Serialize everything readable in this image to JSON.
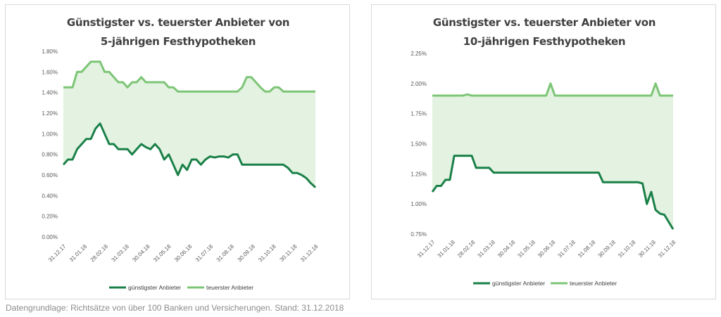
{
  "colors": {
    "cheapest": "#1a8048",
    "most_expensive": "#7cc576",
    "band": "#e3f2e1"
  },
  "footnote": "Datengrundlage: Richtsätze von über 100 Banken und Versicherungen. Stand: 31.12.2018",
  "chart_data": [
    {
      "type": "line",
      "title_line1": "Günstigster vs. teuerster Anbieter von",
      "title_line2": "5-jährigen Festhypotheken",
      "xlabel": "",
      "ylabel": "",
      "ylim": [
        0,
        1.8
      ],
      "yticks": [
        "0.00%",
        "0.20%",
        "0.40%",
        "0.60%",
        "0.80%",
        "1.00%",
        "1.20%",
        "1.40%",
        "1.60%",
        "1.80%"
      ],
      "x_ticks": [
        "31.12.17",
        "31.01.18",
        "28.02.18",
        "31.03.18",
        "30.04.18",
        "31.05.18",
        "30.06.18",
        "31.07.18",
        "31.08.18",
        "30.09.18",
        "31.10.18",
        "30.11.18",
        "31.12.18"
      ],
      "grid": false,
      "legend": "bottom",
      "series": [
        {
          "name": "günstigster Anbieter",
          "values": [
            0.7,
            0.75,
            0.75,
            0.85,
            0.9,
            0.95,
            0.95,
            1.05,
            1.1,
            1.0,
            0.9,
            0.9,
            0.85,
            0.85,
            0.85,
            0.8,
            0.85,
            0.9,
            0.87,
            0.85,
            0.9,
            0.85,
            0.75,
            0.8,
            0.7,
            0.6,
            0.7,
            0.65,
            0.75,
            0.75,
            0.7,
            0.75,
            0.78,
            0.77,
            0.78,
            0.78,
            0.77,
            0.8,
            0.8,
            0.7,
            0.7,
            0.7,
            0.7,
            0.7,
            0.7,
            0.7,
            0.7,
            0.7,
            0.7,
            0.67,
            0.62,
            0.62,
            0.6,
            0.57,
            0.52,
            0.48
          ]
        },
        {
          "name": "teuerster Anbieter",
          "values": [
            1.45,
            1.45,
            1.45,
            1.6,
            1.6,
            1.65,
            1.7,
            1.7,
            1.7,
            1.6,
            1.6,
            1.55,
            1.5,
            1.5,
            1.45,
            1.5,
            1.5,
            1.55,
            1.5,
            1.5,
            1.5,
            1.5,
            1.5,
            1.45,
            1.45,
            1.41,
            1.41,
            1.41,
            1.41,
            1.41,
            1.41,
            1.41,
            1.41,
            1.41,
            1.41,
            1.41,
            1.41,
            1.41,
            1.41,
            1.45,
            1.55,
            1.55,
            1.5,
            1.45,
            1.41,
            1.41,
            1.45,
            1.45,
            1.41,
            1.41,
            1.41,
            1.41,
            1.41,
            1.41,
            1.41,
            1.41
          ]
        }
      ]
    },
    {
      "type": "line",
      "title_line1": "Günstigster vs. teuerster Anbieter von",
      "title_line2": "10-jährigen Festhypotheken",
      "xlabel": "",
      "ylabel": "",
      "ylim": [
        0.75,
        2.25
      ],
      "yticks": [
        "0.75%",
        "1.00%",
        "1.25%",
        "1.50%",
        "1.75%",
        "2.00%",
        "2.25%"
      ],
      "x_ticks": [
        "31.12.17",
        "31.01.18",
        "28.02.18",
        "31.03.18",
        "30.04.18",
        "31.05.18",
        "30.06.18",
        "31.07.18",
        "31.08.18",
        "30.09.18",
        "31.10.18",
        "30.11.18",
        "31.12.18"
      ],
      "grid": false,
      "legend": "bottom",
      "series": [
        {
          "name": "günstigster Anbieter",
          "values": [
            1.1,
            1.15,
            1.15,
            1.2,
            1.2,
            1.4,
            1.4,
            1.4,
            1.4,
            1.4,
            1.3,
            1.3,
            1.3,
            1.3,
            1.26,
            1.26,
            1.26,
            1.26,
            1.26,
            1.26,
            1.26,
            1.26,
            1.26,
            1.26,
            1.26,
            1.26,
            1.26,
            1.26,
            1.26,
            1.26,
            1.26,
            1.26,
            1.26,
            1.26,
            1.26,
            1.26,
            1.26,
            1.26,
            1.26,
            1.18,
            1.18,
            1.18,
            1.18,
            1.18,
            1.18,
            1.18,
            1.18,
            1.18,
            1.17,
            1.0,
            1.1,
            0.95,
            0.92,
            0.91,
            0.85,
            0.79
          ]
        },
        {
          "name": "teuerster Anbieter",
          "values": [
            1.9,
            1.9,
            1.9,
            1.9,
            1.9,
            1.9,
            1.9,
            1.9,
            1.91,
            1.9,
            1.9,
            1.9,
            1.9,
            1.9,
            1.9,
            1.9,
            1.9,
            1.9,
            1.9,
            1.9,
            1.9,
            1.9,
            1.9,
            1.9,
            1.9,
            1.9,
            1.9,
            2.0,
            1.9,
            1.9,
            1.9,
            1.9,
            1.9,
            1.9,
            1.9,
            1.9,
            1.9,
            1.9,
            1.9,
            1.9,
            1.9,
            1.9,
            1.9,
            1.9,
            1.9,
            1.9,
            1.9,
            1.9,
            1.9,
            1.9,
            1.9,
            2.0,
            1.9,
            1.9,
            1.9,
            1.9
          ]
        }
      ]
    }
  ]
}
